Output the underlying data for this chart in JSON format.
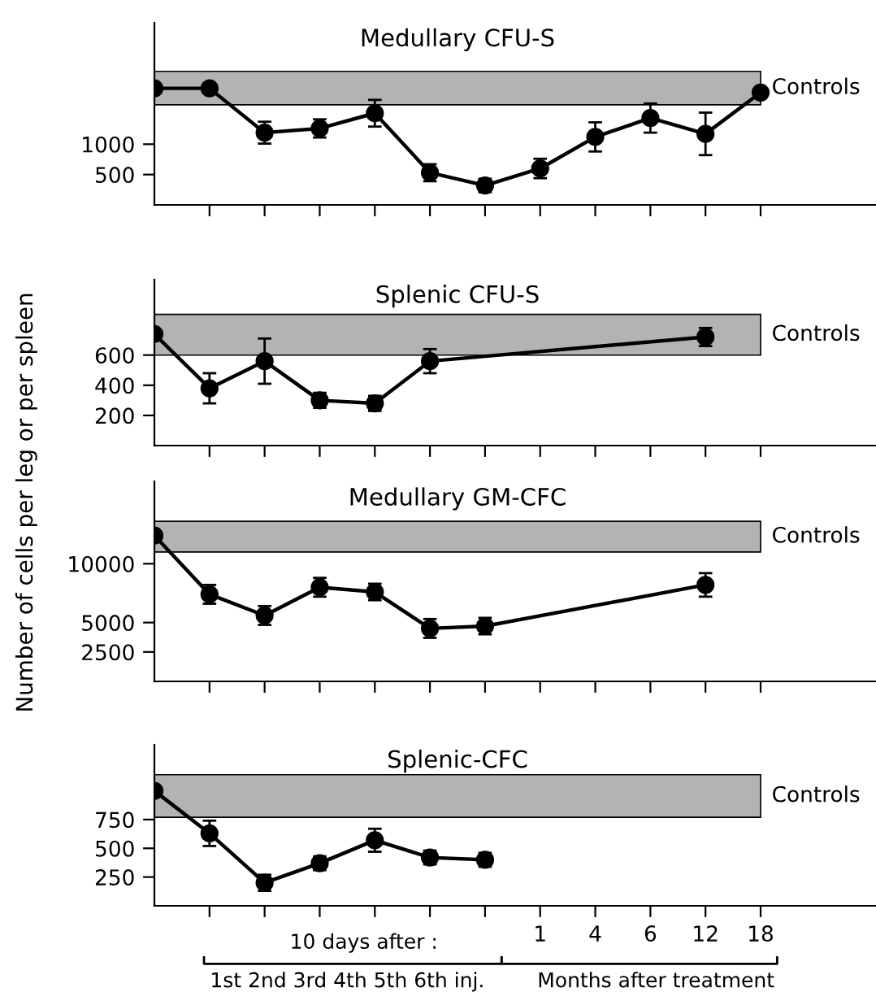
{
  "chart_data": [
    {
      "type": "line",
      "title": "Medullary CFU-S",
      "ylabel": "Number of cells per leg or per spleen",
      "categories": [
        null,
        null,
        null,
        null,
        null,
        null,
        null,
        "1",
        "4",
        "6",
        "12",
        "18"
      ],
      "series": [
        {
          "color": "#000000",
          "values": [
            1920,
            1920,
            1190,
            1260,
            1510,
            530,
            320,
            600,
            1120,
            1430,
            1170,
            1850
          ],
          "errors": [
            null,
            null,
            180,
            150,
            220,
            140,
            110,
            160,
            240,
            240,
            350,
            null
          ]
        }
      ],
      "ylim": [
        0,
        3000
      ],
      "yticks": [
        500,
        1000
      ],
      "marker": "circle",
      "line_style": "solid",
      "tick_labels": "y",
      "bands": [
        {
          "axis": "y",
          "from": 1650,
          "to": 2200,
          "label": "Controls",
          "color": "#b3b3b3"
        }
      ]
    },
    {
      "type": "line",
      "title": "Splenic CFU-S",
      "categories": [
        null,
        null,
        null,
        null,
        null,
        null,
        null,
        "1",
        "4",
        "6",
        "12",
        "18"
      ],
      "series": [
        {
          "color": "#000000",
          "values": [
            740,
            380,
            560,
            300,
            280,
            560,
            null,
            null,
            null,
            null,
            720,
            null
          ],
          "errors": [
            null,
            100,
            150,
            50,
            50,
            80,
            null,
            null,
            null,
            null,
            60,
            null
          ]
        }
      ],
      "ylim": [
        0,
        1100
      ],
      "yticks": [
        200,
        400,
        600
      ],
      "marker": "circle",
      "line_style": "solid",
      "tick_labels": "y",
      "bands": [
        {
          "axis": "y",
          "from": 600,
          "to": 870,
          "label": "Controls",
          "color": "#b3b3b3"
        }
      ]
    },
    {
      "type": "line",
      "title": "Medullary GM-CFC",
      "categories": [
        null,
        null,
        null,
        null,
        null,
        null,
        null,
        "1",
        "4",
        "6",
        "12",
        "18"
      ],
      "series": [
        {
          "color": "#000000",
          "values": [
            12400,
            7400,
            5600,
            8000,
            7600,
            4500,
            4700,
            null,
            null,
            null,
            8200,
            null
          ],
          "errors": [
            null,
            800,
            800,
            800,
            700,
            800,
            700,
            null,
            null,
            null,
            1000,
            null
          ]
        }
      ],
      "ylim": [
        0,
        17000
      ],
      "yticks": [
        2500,
        5000,
        10000
      ],
      "marker": "circle",
      "line_style": "solid",
      "tick_labels": "y",
      "bands": [
        {
          "axis": "y",
          "from": 11000,
          "to": 13600,
          "label": "Controls",
          "color": "#b3b3b3"
        }
      ]
    },
    {
      "type": "line",
      "title": "Splenic-CFC",
      "categories": [
        null,
        null,
        null,
        null,
        null,
        null,
        null,
        "1",
        "4",
        "6",
        "12",
        "18"
      ],
      "series": [
        {
          "color": "#000000",
          "values": [
            1000,
            630,
            200,
            370,
            570,
            420,
            400,
            null,
            null,
            null,
            null,
            null
          ],
          "errors": [
            null,
            110,
            70,
            60,
            100,
            60,
            60,
            null,
            null,
            null,
            null,
            null
          ]
        }
      ],
      "ylim": [
        0,
        1400
      ],
      "yticks": [
        250,
        500,
        750
      ],
      "marker": "circle",
      "line_style": "solid",
      "bands": [
        {
          "axis": "y",
          "from": 770,
          "to": 1140,
          "label": "Controls",
          "color": "#b3b3b3"
        }
      ],
      "annotations": [
        "10 days after :",
        "1st 2nd 3rd 4th 5th 6th inj.",
        "Months after treatment"
      ]
    }
  ]
}
